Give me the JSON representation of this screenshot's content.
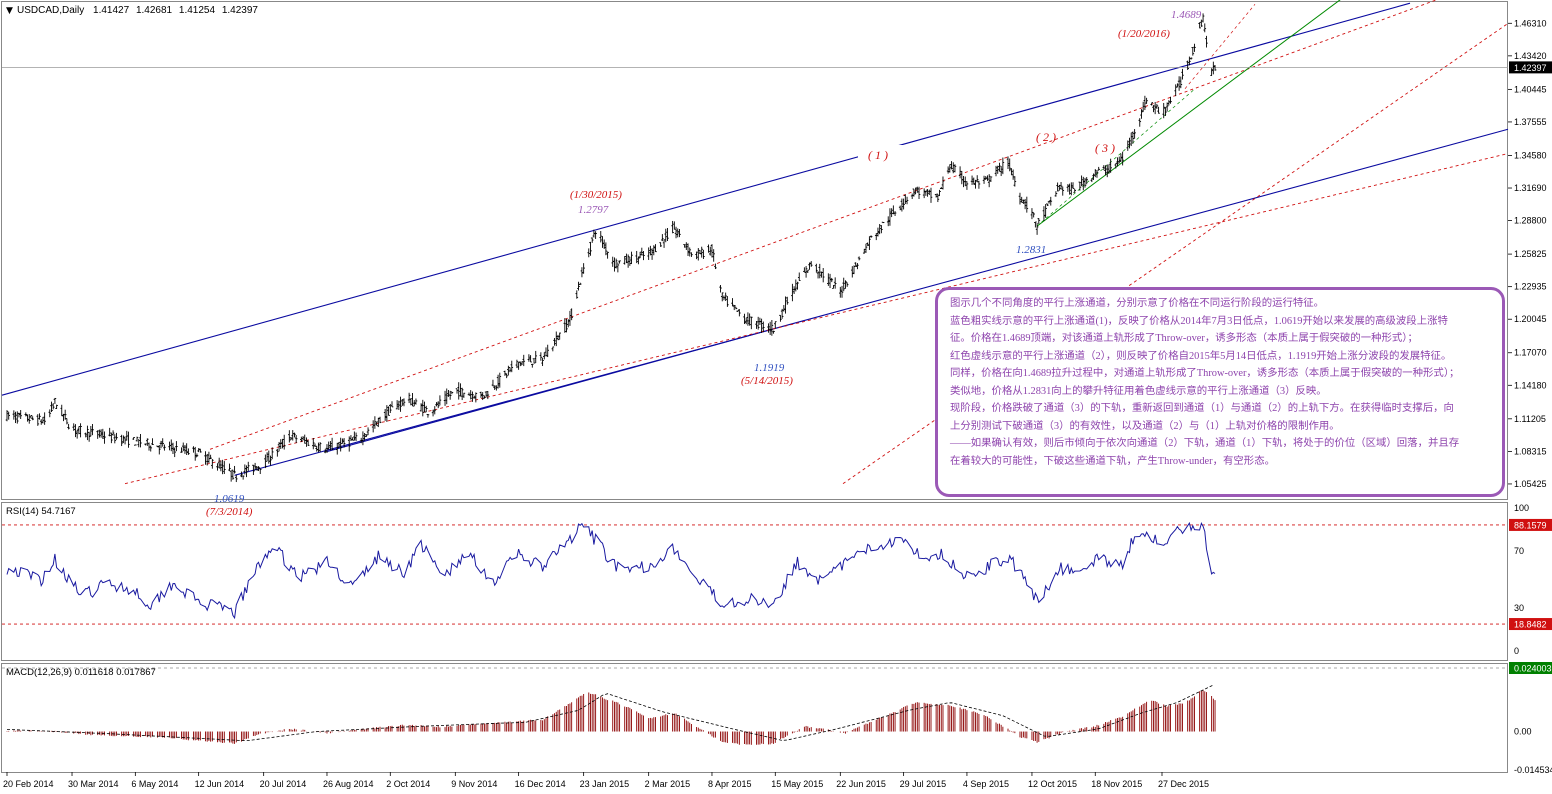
{
  "title": {
    "symbol": "USDCAD,Daily",
    "open": "1.41427",
    "high": "1.42681",
    "low": "1.41254",
    "close": "1.42397"
  },
  "colors": {
    "price_bars": "#000000",
    "blue_channel": "#0a0aa0",
    "red_channel": "#d01010",
    "green_channel": "#008a00",
    "rsi_line": "#1a1aa0",
    "macd_hist": "#8b0000",
    "annotation_red": "#d01010",
    "annotation_blue": "#3050c0",
    "annotation_purple": "#9b59b6",
    "box_border": "#9b59b6",
    "axis_bg_price": "#000000",
    "axis_bg_macd": "#008000"
  },
  "annotations": {
    "peak_value": "1.4689",
    "peak_date": "(1/20/2016)",
    "p1279_date": "(1/30/2015)",
    "p1279_value": "1.2797",
    "low1283_value": "1.2831",
    "low1191_value": "1.1919",
    "low1191_date": "(5/14/2015)",
    "low1061_value": "1.0619",
    "low1061_date": "(7/3/2014)",
    "channel1": "( 1 )",
    "channel2": "( 2 )",
    "channel3": "( 3 )"
  },
  "textbox": {
    "lines": [
      "图示几个不同角度的平行上涨通道，分别示意了价格在不同运行阶段的运行特征。",
      "蓝色粗实线示意的平行上涨通道(1)，反映了价格从2014年7月3日低点，1.0619开始以来发展的高级波段上涨特",
      "征。价格在1.4689顶端，对该通道上轨形成了Throw-over，诱多形态（本质上属于假突破的一种形式）；",
      "红色虚线示意的平行上涨通道（2），则反映了价格自2015年5月14日低点，1.1919开始上涨分波段的发展特征。",
      "同样，价格在向1.4689拉升过程中，对通道上轨形成了Throw-over，诱多形态（本质上属于假突破的一种形式）；",
      "类似地，价格从1.2831向上的攀升特征用着色虚线示意的平行上涨通道（3）反映。",
      "现阶段，价格跌破了通道（3）的下轨，重新返回到通道（1）与通道（2）的上轨下方。在获得临时支撑后，向",
      "上分别测试下破通道（3）的有效性，以及通道（2）与（1）上轨对价格的限制作用。",
      "——如果确认有效，则后市倾向于依次向通道（2）下轨，通道（1）下轨，将处于的价位（区域）回落，并且存",
      "在着较大的可能性，下破这些通道下轨，产生Throw-under，有空形态。"
    ],
    "highlight_words": [
      "现阶段"
    ]
  },
  "chart_data": [
    {
      "type": "candlestick",
      "title": "USDCAD,Daily",
      "y_ticks": [
        "1.46310",
        "1.43420",
        "1.40445",
        "1.37555",
        "1.34580",
        "1.31690",
        "1.28800",
        "1.25825",
        "1.22935",
        "1.20045",
        "1.17070",
        "1.14180",
        "1.11205",
        "1.08315",
        "1.05425"
      ],
      "ylim": [
        1.04,
        1.482
      ],
      "current_price_label": "1.42397",
      "x_ticks": [
        "20 Feb 2014",
        "30 Mar 2014",
        "6 May 2014",
        "12 Jun 2014",
        "20 Jul 2014",
        "26 Aug 2014",
        "2 Oct 2014",
        "9 Nov 2014",
        "16 Dec 2014",
        "23 Jan 2015",
        "2 Mar 2015",
        "8 Apr 2015",
        "15 May 2015",
        "22 Jun 2015",
        "29 Jul 2015",
        "4 Sep 2015",
        "12 Oct 2015",
        "18 Nov 2015",
        "27 Dec 2015"
      ],
      "keypoints": [
        {
          "date": "2014-02-20",
          "value": 1.115
        },
        {
          "date": "2014-03-15",
          "value": 1.11
        },
        {
          "date": "2014-03-20",
          "value": 1.127
        },
        {
          "date": "2014-03-30",
          "value": 1.103
        },
        {
          "date": "2014-05-06",
          "value": 1.092
        },
        {
          "date": "2014-05-25",
          "value": 1.087
        },
        {
          "date": "2014-06-12",
          "value": 1.082
        },
        {
          "date": "2014-07-03",
          "value": 1.0619
        },
        {
          "date": "2014-07-20",
          "value": 1.072
        },
        {
          "date": "2014-08-05",
          "value": 1.097
        },
        {
          "date": "2014-08-26",
          "value": 1.085
        },
        {
          "date": "2014-09-15",
          "value": 1.095
        },
        {
          "date": "2014-10-02",
          "value": 1.12
        },
        {
          "date": "2014-10-12",
          "value": 1.13
        },
        {
          "date": "2014-10-25",
          "value": 1.118
        },
        {
          "date": "2014-11-09",
          "value": 1.137
        },
        {
          "date": "2014-11-25",
          "value": 1.132
        },
        {
          "date": "2014-12-16",
          "value": 1.162
        },
        {
          "date": "2014-12-30",
          "value": 1.165
        },
        {
          "date": "2015-01-15",
          "value": 1.2
        },
        {
          "date": "2015-01-22",
          "value": 1.24
        },
        {
          "date": "2015-01-30",
          "value": 1.2797
        },
        {
          "date": "2015-02-10",
          "value": 1.25
        },
        {
          "date": "2015-03-02",
          "value": 1.258
        },
        {
          "date": "2015-03-17",
          "value": 1.281
        },
        {
          "date": "2015-03-28",
          "value": 1.257
        },
        {
          "date": "2015-04-08",
          "value": 1.262
        },
        {
          "date": "2015-04-14",
          "value": 1.22
        },
        {
          "date": "2015-04-28",
          "value": 1.2
        },
        {
          "date": "2015-05-14",
          "value": 1.1919
        },
        {
          "date": "2015-05-25",
          "value": 1.225
        },
        {
          "date": "2015-06-05",
          "value": 1.25
        },
        {
          "date": "2015-06-22",
          "value": 1.225
        },
        {
          "date": "2015-06-30",
          "value": 1.245
        },
        {
          "date": "2015-07-10",
          "value": 1.272
        },
        {
          "date": "2015-07-29",
          "value": 1.305
        },
        {
          "date": "2015-08-05",
          "value": 1.315
        },
        {
          "date": "2015-08-18",
          "value": 1.308
        },
        {
          "date": "2015-08-25",
          "value": 1.337
        },
        {
          "date": "2015-09-04",
          "value": 1.322
        },
        {
          "date": "2015-09-15",
          "value": 1.322
        },
        {
          "date": "2015-09-28",
          "value": 1.34
        },
        {
          "date": "2015-10-05",
          "value": 1.31
        },
        {
          "date": "2015-10-12",
          "value": 1.295
        },
        {
          "date": "2015-10-15",
          "value": 1.2831
        },
        {
          "date": "2015-10-28",
          "value": 1.318
        },
        {
          "date": "2015-11-05",
          "value": 1.315
        },
        {
          "date": "2015-11-18",
          "value": 1.33
        },
        {
          "date": "2015-11-28",
          "value": 1.335
        },
        {
          "date": "2015-12-05",
          "value": 1.345
        },
        {
          "date": "2015-12-18",
          "value": 1.395
        },
        {
          "date": "2015-12-27",
          "value": 1.383
        },
        {
          "date": "2016-01-05",
          "value": 1.405
        },
        {
          "date": "2016-01-12",
          "value": 1.43
        },
        {
          "date": "2016-01-20",
          "value": 1.4689
        },
        {
          "date": "2016-01-25",
          "value": 1.418
        },
        {
          "date": "2016-01-27",
          "value": 1.424
        }
      ]
    },
    {
      "type": "line",
      "title": "RSI(14) 54.7167",
      "ylim": [
        0,
        100
      ],
      "y_ticks": [
        "100",
        "70",
        "30",
        "0"
      ],
      "levels": [
        88.1579,
        18.8482
      ],
      "level_labels": [
        "88.1579",
        "18.8482"
      ],
      "keypoints": [
        {
          "date": "2014-02-20",
          "value": 58
        },
        {
          "date": "2014-03-12",
          "value": 50
        },
        {
          "date": "2014-03-20",
          "value": 64
        },
        {
          "date": "2014-04-05",
          "value": 38
        },
        {
          "date": "2014-04-20",
          "value": 48
        },
        {
          "date": "2014-05-06",
          "value": 42
        },
        {
          "date": "2014-05-15",
          "value": 32
        },
        {
          "date": "2014-05-28",
          "value": 48
        },
        {
          "date": "2014-06-12",
          "value": 34
        },
        {
          "date": "2014-07-03",
          "value": 27
        },
        {
          "date": "2014-07-15",
          "value": 55
        },
        {
          "date": "2014-07-25",
          "value": 74
        },
        {
          "date": "2014-08-10",
          "value": 52
        },
        {
          "date": "2014-08-26",
          "value": 62
        },
        {
          "date": "2014-09-10",
          "value": 45
        },
        {
          "date": "2014-09-25",
          "value": 66
        },
        {
          "date": "2014-10-10",
          "value": 55
        },
        {
          "date": "2014-10-20",
          "value": 75
        },
        {
          "date": "2014-11-01",
          "value": 52
        },
        {
          "date": "2014-11-18",
          "value": 68
        },
        {
          "date": "2014-12-01",
          "value": 48
        },
        {
          "date": "2014-12-16",
          "value": 68
        },
        {
          "date": "2014-12-30",
          "value": 58
        },
        {
          "date": "2015-01-15",
          "value": 78
        },
        {
          "date": "2015-01-23",
          "value": 88
        },
        {
          "date": "2015-02-05",
          "value": 68
        },
        {
          "date": "2015-02-15",
          "value": 54
        },
        {
          "date": "2015-03-02",
          "value": 60
        },
        {
          "date": "2015-03-17",
          "value": 72
        },
        {
          "date": "2015-03-28",
          "value": 52
        },
        {
          "date": "2015-04-14",
          "value": 34
        },
        {
          "date": "2015-04-28",
          "value": 36
        },
        {
          "date": "2015-05-14",
          "value": 34
        },
        {
          "date": "2015-05-28",
          "value": 62
        },
        {
          "date": "2015-06-12",
          "value": 48
        },
        {
          "date": "2015-06-25",
          "value": 62
        },
        {
          "date": "2015-07-10",
          "value": 72
        },
        {
          "date": "2015-07-29",
          "value": 80
        },
        {
          "date": "2015-08-08",
          "value": 66
        },
        {
          "date": "2015-08-20",
          "value": 68
        },
        {
          "date": "2015-09-04",
          "value": 52
        },
        {
          "date": "2015-09-15",
          "value": 58
        },
        {
          "date": "2015-09-28",
          "value": 66
        },
        {
          "date": "2015-10-05",
          "value": 55
        },
        {
          "date": "2015-10-15",
          "value": 34
        },
        {
          "date": "2015-10-28",
          "value": 58
        },
        {
          "date": "2015-11-10",
          "value": 55
        },
        {
          "date": "2015-11-18",
          "value": 64
        },
        {
          "date": "2015-12-05",
          "value": 62
        },
        {
          "date": "2015-12-12",
          "value": 84
        },
        {
          "date": "2015-12-20",
          "value": 82
        },
        {
          "date": "2015-12-27",
          "value": 72
        },
        {
          "date": "2016-01-05",
          "value": 84
        },
        {
          "date": "2016-01-15",
          "value": 86
        },
        {
          "date": "2016-01-20",
          "value": 88
        },
        {
          "date": "2016-01-25",
          "value": 56
        },
        {
          "date": "2016-01-27",
          "value": 55
        }
      ]
    },
    {
      "type": "bar",
      "title": "MACD(12,26,9) 0.011618 0.017867",
      "y_ticks": [
        "0.024003",
        "0.00",
        "-0.014534"
      ],
      "ylim": [
        -0.014534,
        0.024003
      ],
      "keypoints": [
        {
          "date": "2014-02-20",
          "value": 0.0005
        },
        {
          "date": "2014-03-20",
          "value": 0.0
        },
        {
          "date": "2014-04-10",
          "value": -0.0012
        },
        {
          "date": "2014-05-01",
          "value": -0.0018
        },
        {
          "date": "2014-05-20",
          "value": -0.002
        },
        {
          "date": "2014-06-12",
          "value": -0.0035
        },
        {
          "date": "2014-07-03",
          "value": -0.0045
        },
        {
          "date": "2014-07-20",
          "value": -0.0005
        },
        {
          "date": "2014-08-05",
          "value": 0.001
        },
        {
          "date": "2014-08-26",
          "value": -0.0005
        },
        {
          "date": "2014-09-20",
          "value": 0.0012
        },
        {
          "date": "2014-10-12",
          "value": 0.0025
        },
        {
          "date": "2014-11-01",
          "value": 0.0018
        },
        {
          "date": "2014-11-20",
          "value": 0.0028
        },
        {
          "date": "2014-12-10",
          "value": 0.0035
        },
        {
          "date": "2014-12-30",
          "value": 0.0045
        },
        {
          "date": "2015-01-15",
          "value": 0.0105
        },
        {
          "date": "2015-01-25",
          "value": 0.015
        },
        {
          "date": "2015-02-15",
          "value": 0.01
        },
        {
          "date": "2015-03-02",
          "value": 0.005
        },
        {
          "date": "2015-03-17",
          "value": 0.007
        },
        {
          "date": "2015-04-01",
          "value": 0.001
        },
        {
          "date": "2015-04-14",
          "value": -0.004
        },
        {
          "date": "2015-04-28",
          "value": -0.005
        },
        {
          "date": "2015-05-14",
          "value": -0.0045
        },
        {
          "date": "2015-06-01",
          "value": 0.002
        },
        {
          "date": "2015-06-25",
          "value": -0.0005
        },
        {
          "date": "2015-07-15",
          "value": 0.005
        },
        {
          "date": "2015-08-05",
          "value": 0.011
        },
        {
          "date": "2015-08-25",
          "value": 0.01
        },
        {
          "date": "2015-09-15",
          "value": 0.006
        },
        {
          "date": "2015-10-05",
          "value": -0.002
        },
        {
          "date": "2015-10-15",
          "value": -0.004
        },
        {
          "date": "2015-11-01",
          "value": 0.0
        },
        {
          "date": "2015-11-18",
          "value": 0.002
        },
        {
          "date": "2015-12-05",
          "value": 0.006
        },
        {
          "date": "2015-12-20",
          "value": 0.012
        },
        {
          "date": "2015-12-30",
          "value": 0.0095
        },
        {
          "date": "2016-01-10",
          "value": 0.011
        },
        {
          "date": "2016-01-20",
          "value": 0.016
        },
        {
          "date": "2016-01-27",
          "value": 0.012
        }
      ],
      "signal_keypoints": [
        {
          "date": "2014-02-20",
          "value": 0.0008
        },
        {
          "date": "2014-04-20",
          "value": -0.0008
        },
        {
          "date": "2014-07-10",
          "value": -0.0035
        },
        {
          "date": "2014-08-20",
          "value": 0.0
        },
        {
          "date": "2014-10-20",
          "value": 0.002
        },
        {
          "date": "2014-12-20",
          "value": 0.0035
        },
        {
          "date": "2015-01-20",
          "value": 0.008
        },
        {
          "date": "2015-02-05",
          "value": 0.0145
        },
        {
          "date": "2015-03-10",
          "value": 0.0075
        },
        {
          "date": "2015-04-20",
          "value": 0.001
        },
        {
          "date": "2015-05-20",
          "value": -0.0035
        },
        {
          "date": "2015-06-20",
          "value": 0.001
        },
        {
          "date": "2015-08-01",
          "value": 0.008
        },
        {
          "date": "2015-08-25",
          "value": 0.011
        },
        {
          "date": "2015-09-25",
          "value": 0.006
        },
        {
          "date": "2015-10-20",
          "value": -0.002
        },
        {
          "date": "2015-11-20",
          "value": 0.001
        },
        {
          "date": "2015-12-15",
          "value": 0.007
        },
        {
          "date": "2016-01-05",
          "value": 0.011
        },
        {
          "date": "2016-01-27",
          "value": 0.0179
        }
      ]
    }
  ]
}
